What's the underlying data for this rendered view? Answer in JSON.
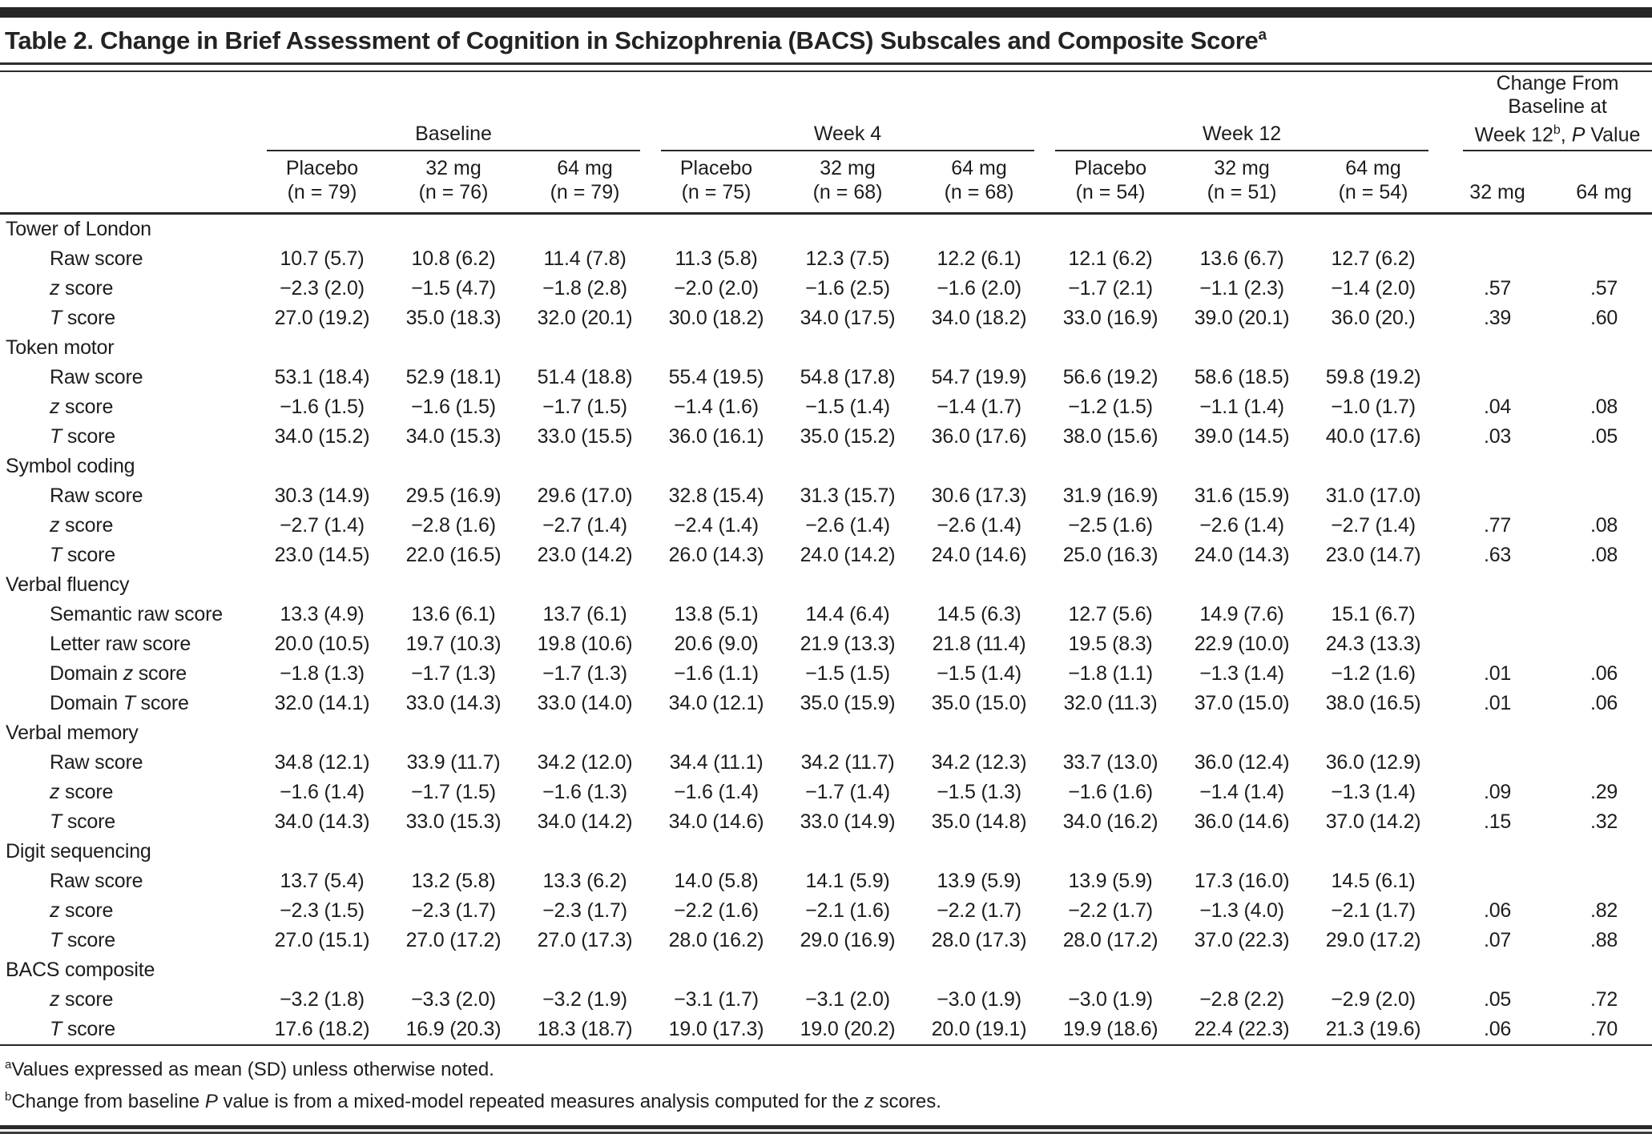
{
  "style": {
    "ink": "#1d1d1f",
    "rule": "#272727"
  },
  "title": {
    "segments": [
      [
        "t",
        "Table 2. Change in Brief Assessment of Cognition in Schizophrenia (BACS) Subscales and Composite Score"
      ],
      [
        "sup",
        "a"
      ]
    ]
  },
  "header": {
    "groups": [
      {
        "label": "Baseline",
        "cols": [
          [
            "Placebo",
            "(n = 79)"
          ],
          [
            "32 mg",
            "(n = 76)"
          ],
          [
            "64 mg",
            "(n = 79)"
          ]
        ]
      },
      {
        "label": "Week 4",
        "cols": [
          [
            "Placebo",
            "(n = 75)"
          ],
          [
            "32 mg",
            "(n = 68)"
          ],
          [
            "64 mg",
            "(n = 68)"
          ]
        ]
      },
      {
        "label": "Week 12",
        "cols": [
          [
            "Placebo",
            "(n = 54)"
          ],
          [
            "32 mg",
            "(n = 51)"
          ],
          [
            "64 mg",
            "(n = 54)"
          ]
        ]
      }
    ],
    "change": {
      "lines": [
        [
          [
            "t",
            "Change From"
          ]
        ],
        [
          [
            "t",
            "Baseline at"
          ]
        ],
        [
          [
            "t",
            "Week 12"
          ],
          [
            "sup",
            "b"
          ],
          [
            "t",
            ", "
          ],
          [
            "i",
            "P"
          ],
          [
            "t",
            " Value"
          ]
        ]
      ],
      "cols": [
        "32 mg",
        "64 mg"
      ]
    }
  },
  "table": {
    "sections": [
      {
        "label": "Tower of London",
        "rows": [
          {
            "label": [
              [
                "t",
                "Raw score"
              ]
            ],
            "values": [
              "10.7 (5.7)",
              "10.8 (6.2)",
              "11.4 (7.8)",
              "11.3 (5.8)",
              "12.3 (7.5)",
              "12.2 (6.1)",
              "12.1 (6.2)",
              "13.6 (6.7)",
              "12.7 (6.2)",
              "",
              ""
            ]
          },
          {
            "label": [
              [
                "i",
                "z"
              ],
              [
                "t",
                " score"
              ]
            ],
            "values": [
              "−2.3 (2.0)",
              "−1.5 (4.7)",
              "−1.8 (2.8)",
              "−2.0 (2.0)",
              "−1.6 (2.5)",
              "−1.6 (2.0)",
              "−1.7 (2.1)",
              "−1.1 (2.3)",
              "−1.4 (2.0)",
              ".57",
              ".57"
            ]
          },
          {
            "label": [
              [
                "i",
                "T"
              ],
              [
                "t",
                " score"
              ]
            ],
            "values": [
              "27.0 (19.2)",
              "35.0 (18.3)",
              "32.0 (20.1)",
              "30.0 (18.2)",
              "34.0 (17.5)",
              "34.0 (18.2)",
              "33.0 (16.9)",
              "39.0 (20.1)",
              "36.0 (20.)",
              ".39",
              ".60"
            ]
          }
        ]
      },
      {
        "label": "Token motor",
        "rows": [
          {
            "label": [
              [
                "t",
                "Raw score"
              ]
            ],
            "values": [
              "53.1 (18.4)",
              "52.9 (18.1)",
              "51.4 (18.8)",
              "55.4 (19.5)",
              "54.8 (17.8)",
              "54.7 (19.9)",
              "56.6 (19.2)",
              "58.6 (18.5)",
              "59.8 (19.2)",
              "",
              ""
            ]
          },
          {
            "label": [
              [
                "i",
                "z"
              ],
              [
                "t",
                " score"
              ]
            ],
            "values": [
              "−1.6 (1.5)",
              "−1.6 (1.5)",
              "−1.7 (1.5)",
              "−1.4 (1.6)",
              "−1.5 (1.4)",
              "−1.4 (1.7)",
              "−1.2 (1.5)",
              "−1.1 (1.4)",
              "−1.0 (1.7)",
              ".04",
              ".08"
            ]
          },
          {
            "label": [
              [
                "i",
                "T"
              ],
              [
                "t",
                " score"
              ]
            ],
            "values": [
              "34.0 (15.2)",
              "34.0 (15.3)",
              "33.0 (15.5)",
              "36.0 (16.1)",
              "35.0 (15.2)",
              "36.0 (17.6)",
              "38.0 (15.6)",
              "39.0 (14.5)",
              "40.0 (17.6)",
              ".03",
              ".05"
            ]
          }
        ]
      },
      {
        "label": "Symbol coding",
        "rows": [
          {
            "label": [
              [
                "t",
                "Raw score"
              ]
            ],
            "values": [
              "30.3 (14.9)",
              "29.5 (16.9)",
              "29.6 (17.0)",
              "32.8 (15.4)",
              "31.3 (15.7)",
              "30.6 (17.3)",
              "31.9 (16.9)",
              "31.6 (15.9)",
              "31.0 (17.0)",
              "",
              ""
            ]
          },
          {
            "label": [
              [
                "i",
                "z"
              ],
              [
                "t",
                " score"
              ]
            ],
            "values": [
              "−2.7 (1.4)",
              "−2.8 (1.6)",
              "−2.7 (1.4)",
              "−2.4 (1.4)",
              "−2.6 (1.4)",
              "−2.6 (1.4)",
              "−2.5 (1.6)",
              "−2.6 (1.4)",
              "−2.7 (1.4)",
              ".77",
              ".08"
            ]
          },
          {
            "label": [
              [
                "i",
                "T"
              ],
              [
                "t",
                " score"
              ]
            ],
            "values": [
              "23.0 (14.5)",
              "22.0 (16.5)",
              "23.0 (14.2)",
              "26.0 (14.3)",
              "24.0 (14.2)",
              "24.0 (14.6)",
              "25.0 (16.3)",
              "24.0 (14.3)",
              "23.0 (14.7)",
              ".63",
              ".08"
            ]
          }
        ]
      },
      {
        "label": "Verbal fluency",
        "rows": [
          {
            "label": [
              [
                "t",
                "Semantic raw score"
              ]
            ],
            "values": [
              "13.3 (4.9)",
              "13.6 (6.1)",
              "13.7 (6.1)",
              "13.8 (5.1)",
              "14.4 (6.4)",
              "14.5 (6.3)",
              "12.7 (5.6)",
              "14.9 (7.6)",
              "15.1 (6.7)",
              "",
              ""
            ]
          },
          {
            "label": [
              [
                "t",
                "Letter raw score"
              ]
            ],
            "values": [
              "20.0 (10.5)",
              "19.7 (10.3)",
              "19.8 (10.6)",
              "20.6 (9.0)",
              "21.9 (13.3)",
              "21.8 (11.4)",
              "19.5 (8.3)",
              "22.9 (10.0)",
              "24.3 (13.3)",
              "",
              ""
            ]
          },
          {
            "label": [
              [
                "t",
                "Domain "
              ],
              [
                "i",
                "z"
              ],
              [
                "t",
                " score"
              ]
            ],
            "values": [
              "−1.8 (1.3)",
              "−1.7 (1.3)",
              "−1.7 (1.3)",
              "−1.6 (1.1)",
              "−1.5 (1.5)",
              "−1.5 (1.4)",
              "−1.8 (1.1)",
              "−1.3 (1.4)",
              "−1.2 (1.6)",
              ".01",
              ".06"
            ]
          },
          {
            "label": [
              [
                "t",
                "Domain "
              ],
              [
                "i",
                "T"
              ],
              [
                "t",
                " score"
              ]
            ],
            "values": [
              "32.0 (14.1)",
              "33.0 (14.3)",
              "33.0 (14.0)",
              "34.0 (12.1)",
              "35.0 (15.9)",
              "35.0 (15.0)",
              "32.0 (11.3)",
              "37.0 (15.0)",
              "38.0 (16.5)",
              ".01",
              ".06"
            ]
          }
        ]
      },
      {
        "label": "Verbal memory",
        "rows": [
          {
            "label": [
              [
                "t",
                "Raw score"
              ]
            ],
            "values": [
              "34.8 (12.1)",
              "33.9 (11.7)",
              "34.2 (12.0)",
              "34.4 (11.1)",
              "34.2 (11.7)",
              "34.2 (12.3)",
              "33.7 (13.0)",
              "36.0 (12.4)",
              "36.0 (12.9)",
              "",
              ""
            ]
          },
          {
            "label": [
              [
                "i",
                "z"
              ],
              [
                "t",
                " score"
              ]
            ],
            "values": [
              "−1.6 (1.4)",
              "−1.7 (1.5)",
              "−1.6 (1.3)",
              "−1.6 (1.4)",
              "−1.7 (1.4)",
              "−1.5 (1.3)",
              "−1.6 (1.6)",
              "−1.4 (1.4)",
              "−1.3 (1.4)",
              ".09",
              ".29"
            ]
          },
          {
            "label": [
              [
                "i",
                "T"
              ],
              [
                "t",
                " score"
              ]
            ],
            "values": [
              "34.0 (14.3)",
              "33.0 (15.3)",
              "34.0 (14.2)",
              "34.0 (14.6)",
              "33.0 (14.9)",
              "35.0 (14.8)",
              "34.0 (16.2)",
              "36.0 (14.6)",
              "37.0 (14.2)",
              ".15",
              ".32"
            ]
          }
        ]
      },
      {
        "label": "Digit sequencing",
        "rows": [
          {
            "label": [
              [
                "t",
                "Raw score"
              ]
            ],
            "values": [
              "13.7 (5.4)",
              "13.2 (5.8)",
              "13.3 (6.2)",
              "14.0 (5.8)",
              "14.1 (5.9)",
              "13.9 (5.9)",
              "13.9 (5.9)",
              "17.3 (16.0)",
              "14.5 (6.1)",
              "",
              ""
            ]
          },
          {
            "label": [
              [
                "i",
                "z"
              ],
              [
                "t",
                " score"
              ]
            ],
            "values": [
              "−2.3 (1.5)",
              "−2.3 (1.7)",
              "−2.3 (1.7)",
              "−2.2 (1.6)",
              "−2.1 (1.6)",
              "−2.2 (1.7)",
              "−2.2 (1.7)",
              "−1.3 (4.0)",
              "−2.1 (1.7)",
              ".06",
              ".82"
            ]
          },
          {
            "label": [
              [
                "i",
                "T"
              ],
              [
                "t",
                " score"
              ]
            ],
            "values": [
              "27.0 (15.1)",
              "27.0 (17.2)",
              "27.0 (17.3)",
              "28.0 (16.2)",
              "29.0 (16.9)",
              "28.0 (17.3)",
              "28.0 (17.2)",
              "37.0 (22.3)",
              "29.0 (17.2)",
              ".07",
              ".88"
            ]
          }
        ]
      },
      {
        "label": "BACS composite",
        "rows": [
          {
            "label": [
              [
                "i",
                "z"
              ],
              [
                "t",
                " score"
              ]
            ],
            "values": [
              "−3.2 (1.8)",
              "−3.3 (2.0)",
              "−3.2 (1.9)",
              "−3.1 (1.7)",
              "−3.1 (2.0)",
              "−3.0 (1.9)",
              "−3.0 (1.9)",
              "−2.8 (2.2)",
              "−2.9 (2.0)",
              ".05",
              ".72"
            ]
          },
          {
            "label": [
              [
                "i",
                "T"
              ],
              [
                "t",
                " score"
              ]
            ],
            "values": [
              "17.6 (18.2)",
              "16.9 (20.3)",
              "18.3 (18.7)",
              "19.0 (17.3)",
              "19.0 (20.2)",
              "20.0 (19.1)",
              "19.9 (18.6)",
              "22.4 (22.3)",
              "21.3 (19.6)",
              ".06",
              ".70"
            ]
          }
        ]
      }
    ]
  },
  "footnotes": [
    [
      [
        "sup",
        "a"
      ],
      [
        "t",
        "Values expressed as mean (SD) unless otherwise noted."
      ]
    ],
    [
      [
        "sup",
        "b"
      ],
      [
        "t",
        "Change from baseline "
      ],
      [
        "i",
        "P"
      ],
      [
        "t",
        " value is from a mixed-model repeated measures analysis computed for the "
      ],
      [
        "i",
        "z"
      ],
      [
        "t",
        " scores."
      ]
    ]
  ]
}
